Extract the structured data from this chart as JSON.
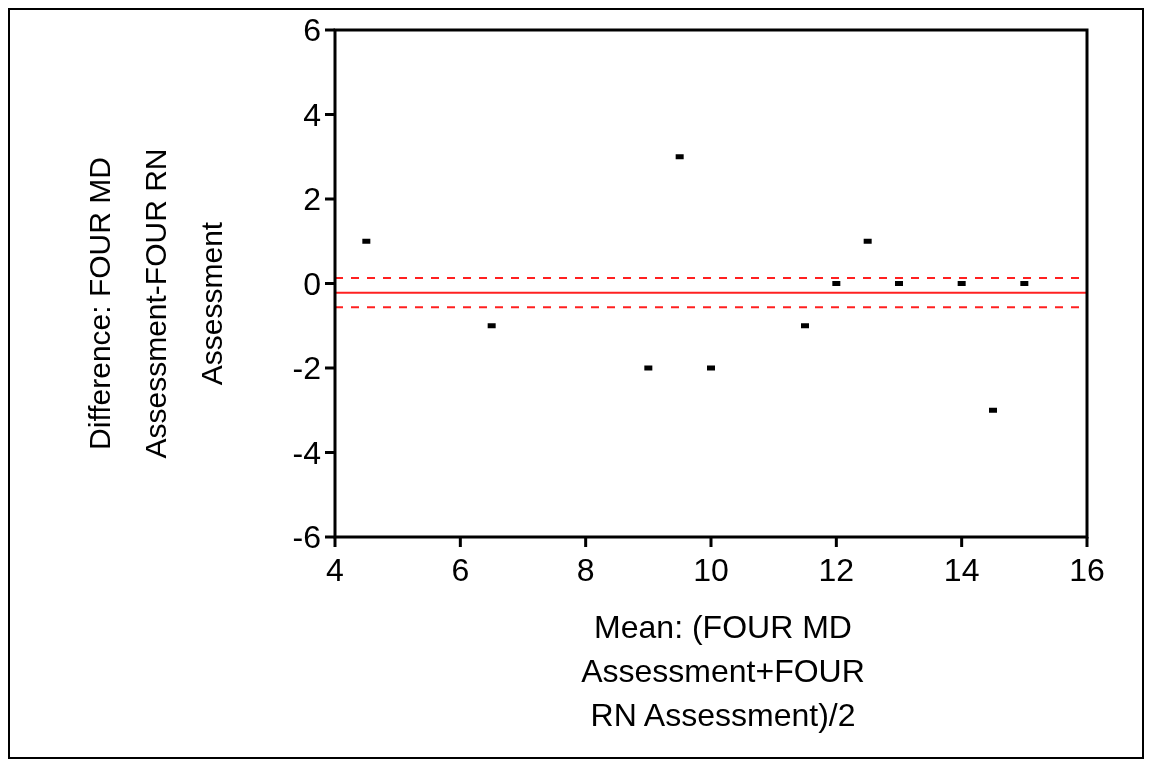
{
  "chart_data": {
    "type": "scatter",
    "xlabel": "Mean: (FOUR MD\nAssessment+FOUR\nRN Assessment)/2",
    "ylabel": "Difference: FOUR MD\nAssessment-FOUR RN\nAssessment",
    "x": [
      4.5,
      6.5,
      9,
      9.5,
      10,
      11.5,
      12,
      12.5,
      13,
      14,
      14.5,
      15
    ],
    "series": [
      {
        "color": "#000000",
        "values": [
          1,
          -1,
          -2,
          3,
          -2,
          -1,
          0,
          1,
          0,
          0,
          -3,
          0
        ]
      }
    ],
    "marker": "square",
    "xlim": [
      4,
      16
    ],
    "xticks": [
      4,
      6,
      8,
      10,
      12,
      14,
      16
    ],
    "ylim": [
      -6,
      6
    ],
    "yticks": [
      -6,
      -4,
      -2,
      0,
      2,
      4,
      6
    ],
    "ref_lines": [
      {
        "axis": "y",
        "value": -0.22,
        "color": "#ff2020",
        "line_style": "solid"
      },
      {
        "axis": "y",
        "value": 0.13,
        "color": "#ff2020",
        "line_style": "dashed"
      },
      {
        "axis": "y",
        "value": -0.56,
        "color": "#ff2020",
        "line_style": "dashed"
      }
    ]
  }
}
